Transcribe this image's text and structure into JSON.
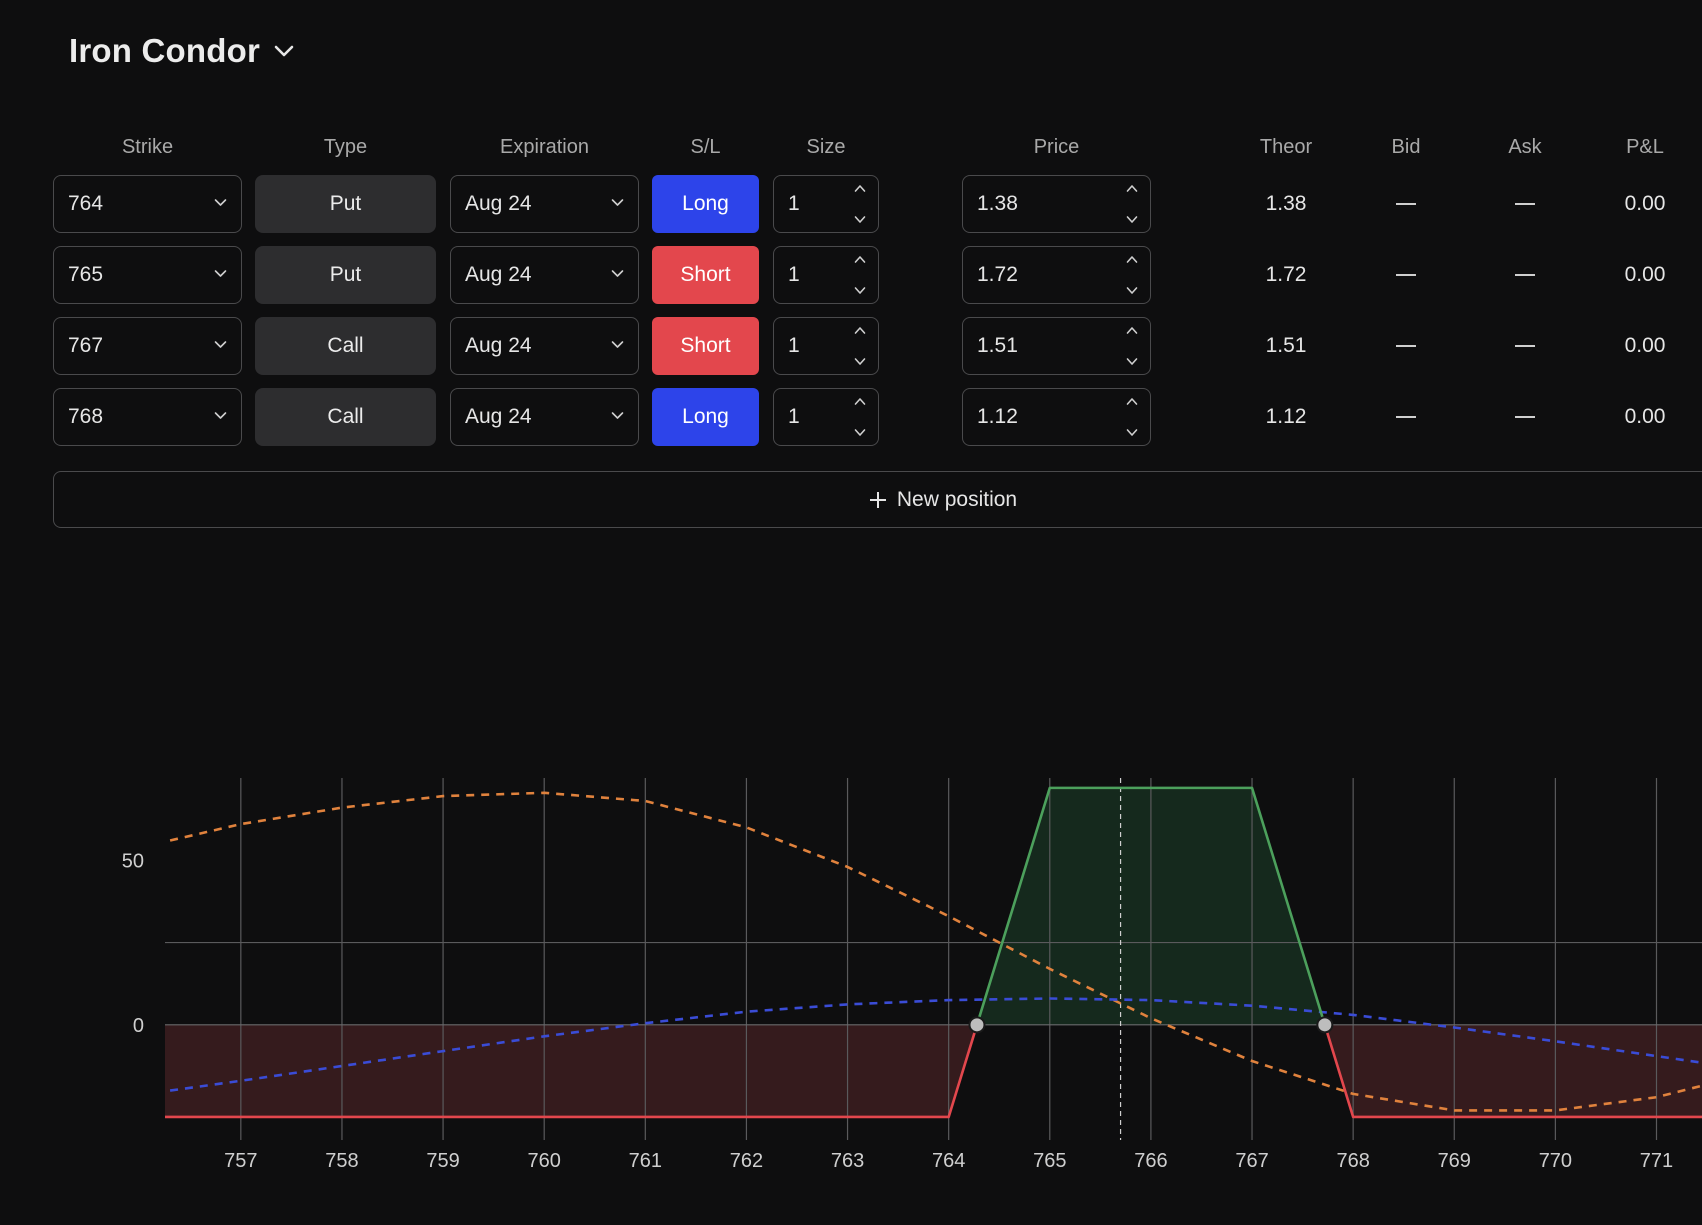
{
  "title": "Iron Condor",
  "columns": {
    "strike": "Strike",
    "type": "Type",
    "expiration": "Expiration",
    "sl": "S/L",
    "size": "Size",
    "price": "Price",
    "theor": "Theor",
    "bid": "Bid",
    "ask": "Ask",
    "pnl": "P&L"
  },
  "positions": [
    {
      "strike": "764",
      "type": "Put",
      "expiration": "Aug 24",
      "sl": "Long",
      "size": "1",
      "price": "1.38",
      "theor": "1.38",
      "pnl": "0.00"
    },
    {
      "strike": "765",
      "type": "Put",
      "expiration": "Aug 24",
      "sl": "Short",
      "size": "1",
      "price": "1.72",
      "theor": "1.72",
      "pnl": "0.00"
    },
    {
      "strike": "767",
      "type": "Call",
      "expiration": "Aug 24",
      "sl": "Short",
      "size": "1",
      "price": "1.51",
      "theor": "1.51",
      "pnl": "0.00"
    },
    {
      "strike": "768",
      "type": "Call",
      "expiration": "Aug 24",
      "sl": "Long",
      "size": "1",
      "price": "1.12",
      "theor": "1.12",
      "pnl": "0.00"
    }
  ],
  "new_position_label": "New position",
  "colors": {
    "long": "#2d44ea",
    "short": "#e3474d",
    "profit": "#4ca05c",
    "loss": "#e3474d",
    "dashed_orange": "#e0823d",
    "dashed_blue": "#3a4cd6"
  },
  "icons": {
    "title_chevron": "chevron-down-icon",
    "select_chevron": "chevron-down-icon",
    "stepper": "up-down-stepper-icon",
    "plus": "plus-icon"
  },
  "chart_data": {
    "type": "line",
    "x_ticks": [
      757,
      758,
      759,
      760,
      761,
      762,
      763,
      764,
      765,
      766,
      767,
      768,
      769,
      770,
      771
    ],
    "y_ticks": [
      0,
      50
    ],
    "xlim": [
      756.25,
      771.45
    ],
    "ylim": [
      -35,
      75
    ],
    "current_price": 765.7,
    "breakevens": [
      764.28,
      767.72
    ],
    "series": [
      {
        "style": "pnl-payoff",
        "x": [
          756.25,
          764,
          765,
          767,
          768,
          771.45
        ],
        "y": [
          -28,
          -28,
          72,
          72,
          -28,
          -28
        ]
      },
      {
        "style": "dashed-orange",
        "x": [
          756.3,
          757,
          758,
          759,
          760,
          761,
          762,
          763,
          764,
          765,
          766,
          767,
          768,
          769,
          770,
          771,
          771.45
        ],
        "y": [
          56,
          61,
          66,
          69.5,
          70.5,
          68,
          60,
          48,
          33,
          17,
          2,
          -11,
          -21,
          -26,
          -26,
          -22,
          -18.5
        ]
      },
      {
        "style": "dashed-blue",
        "x": [
          756.3,
          757,
          758,
          759,
          760,
          761,
          762,
          763,
          764,
          765,
          766,
          767,
          768,
          769,
          770,
          771,
          771.45
        ],
        "y": [
          -20,
          -17,
          -12.5,
          -8,
          -3.5,
          0.5,
          4,
          6.2,
          7.5,
          8,
          7.5,
          5.8,
          3,
          -0.8,
          -5,
          -9.5,
          -11.5
        ]
      }
    ]
  }
}
